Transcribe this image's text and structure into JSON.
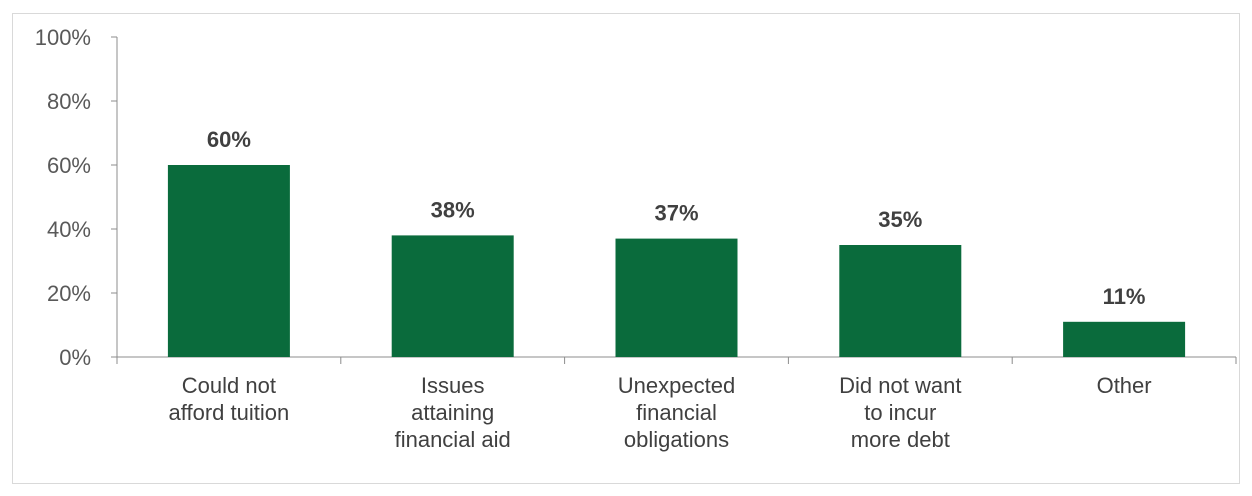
{
  "chart_data": {
    "type": "bar",
    "title": "",
    "xlabel": "",
    "ylabel": "",
    "ylim": [
      0,
      100
    ],
    "y_tick_values": [
      0,
      20,
      40,
      60,
      80,
      100
    ],
    "y_tick_labels": [
      "0%",
      "20%",
      "40%",
      "60%",
      "80%",
      "100%"
    ],
    "categories": [
      [
        "Could not",
        "afford tuition"
      ],
      [
        "Issues",
        "attaining",
        "financial aid"
      ],
      [
        "Unexpected",
        "financial",
        "obligations"
      ],
      [
        "Did not want",
        "to incur",
        "more debt"
      ],
      [
        "Other"
      ]
    ],
    "values": [
      60,
      38,
      37,
      35,
      11
    ],
    "data_labels": [
      "60%",
      "38%",
      "37%",
      "35%",
      "11%"
    ],
    "bar_color": "#0a6b3c",
    "grid": false,
    "legend": "none"
  }
}
